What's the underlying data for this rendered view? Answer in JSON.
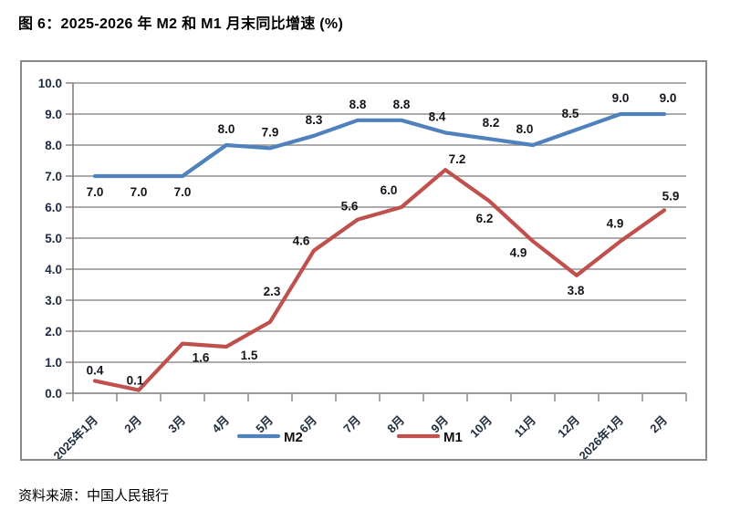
{
  "figure": {
    "title": "图 6：2025-2026 年 M2 和 M1 月末同比增速 (%)",
    "source": "资料来源：中国人民银行"
  },
  "chart_data": {
    "type": "line",
    "title": "",
    "xlabel": "",
    "ylabel": "",
    "categories": [
      "2025年1月",
      "2月",
      "3月",
      "4月",
      "5月",
      "6月",
      "7月",
      "8月",
      "9月",
      "10月",
      "11月",
      "12月",
      "2026年1月",
      "2月"
    ],
    "series": [
      {
        "name": "M2",
        "color": "#4F81BD",
        "values": [
          7.0,
          7.0,
          7.0,
          8.0,
          7.9,
          8.3,
          8.8,
          8.8,
          8.4,
          8.2,
          8.0,
          8.5,
          9.0,
          9.0
        ],
        "label_offsets": [
          [
            0,
            22
          ],
          [
            0,
            22
          ],
          [
            0,
            22
          ],
          [
            0,
            -13
          ],
          [
            0,
            -13
          ],
          [
            0,
            -13
          ],
          [
            0,
            -13
          ],
          [
            0,
            -13
          ],
          [
            -9,
            -13
          ],
          [
            2,
            -13
          ],
          [
            -9,
            -13
          ],
          [
            -7,
            -13
          ],
          [
            0,
            -13
          ],
          [
            4,
            -13
          ]
        ]
      },
      {
        "name": "M1",
        "color": "#C0504D",
        "values": [
          0.4,
          0.1,
          1.6,
          1.5,
          2.3,
          4.6,
          5.6,
          6.0,
          7.2,
          6.2,
          4.9,
          3.8,
          4.9,
          5.9
        ],
        "label_offsets": [
          [
            0,
            -7
          ],
          [
            -4,
            -6
          ],
          [
            20,
            20
          ],
          [
            25,
            14
          ],
          [
            2,
            -29
          ],
          [
            -14,
            -6
          ],
          [
            -9,
            -10
          ],
          [
            -14,
            -14
          ],
          [
            13,
            -7
          ],
          [
            -5,
            24
          ],
          [
            -16,
            17
          ],
          [
            -1,
            21
          ],
          [
            -6,
            -15
          ],
          [
            7,
            -11
          ]
        ]
      }
    ],
    "ylim": [
      0,
      10
    ],
    "ytick_step": 1.0,
    "ytick_decimals": 1,
    "grid": "horizontal",
    "legend_position": "bottom",
    "data_labels": true,
    "colors": {
      "gridline": "#8f8f8f",
      "axis": "#808080",
      "tick_label": "#1f2a40",
      "data_label": "#14141c",
      "legend_label": "#111111"
    }
  }
}
